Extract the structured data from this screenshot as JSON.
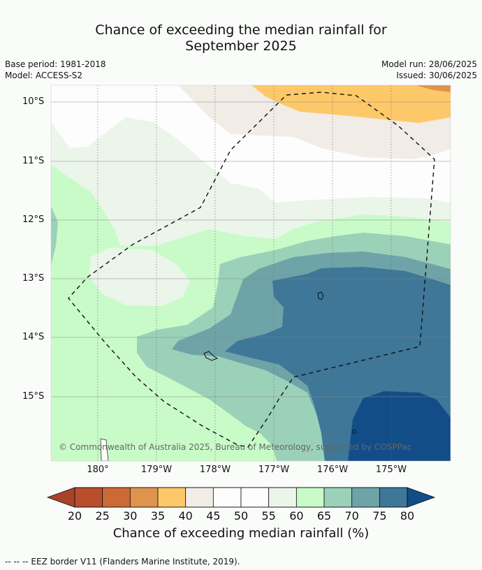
{
  "title_line1": "Chance of exceeding the median rainfall for",
  "title_line2": "September 2025",
  "left_meta": [
    "Base period: 1981-2018",
    "Model: ACCESS-S2"
  ],
  "right_meta": [
    "Model run: 28/06/2025",
    "Issued: 30/06/2025"
  ],
  "lat_ticks": [
    "10°S",
    "11°S",
    "12°S",
    "13°S",
    "14°S",
    "15°S"
  ],
  "lon_ticks": [
    "180°",
    "179°W",
    "178°W",
    "177°W",
    "176°W",
    "175°W"
  ],
  "copyright": "© Commonwealth of Australia 2025, Bureau of Meteorology, supported by COSPPac",
  "colorbar": {
    "levels": [
      "20",
      "25",
      "30",
      "35",
      "40",
      "45",
      "50",
      "55",
      "60",
      "65",
      "70",
      "75",
      "80"
    ],
    "colors": [
      "#a8432a",
      "#b84e2c",
      "#cc6a37",
      "#e0934c",
      "#fdc968",
      "#f1ece6",
      "#fdfdfd",
      "#fdfdfd",
      "#ebf5ea",
      "#c9fbc8",
      "#9bd1b8",
      "#6ea4a7",
      "#3e7798",
      "#124d88"
    ],
    "label": "Chance of exceeding median rainfall (%)"
  },
  "footer": "--  --  -- EEZ border V11 (Flanders Marine Institute, 2019)."
}
